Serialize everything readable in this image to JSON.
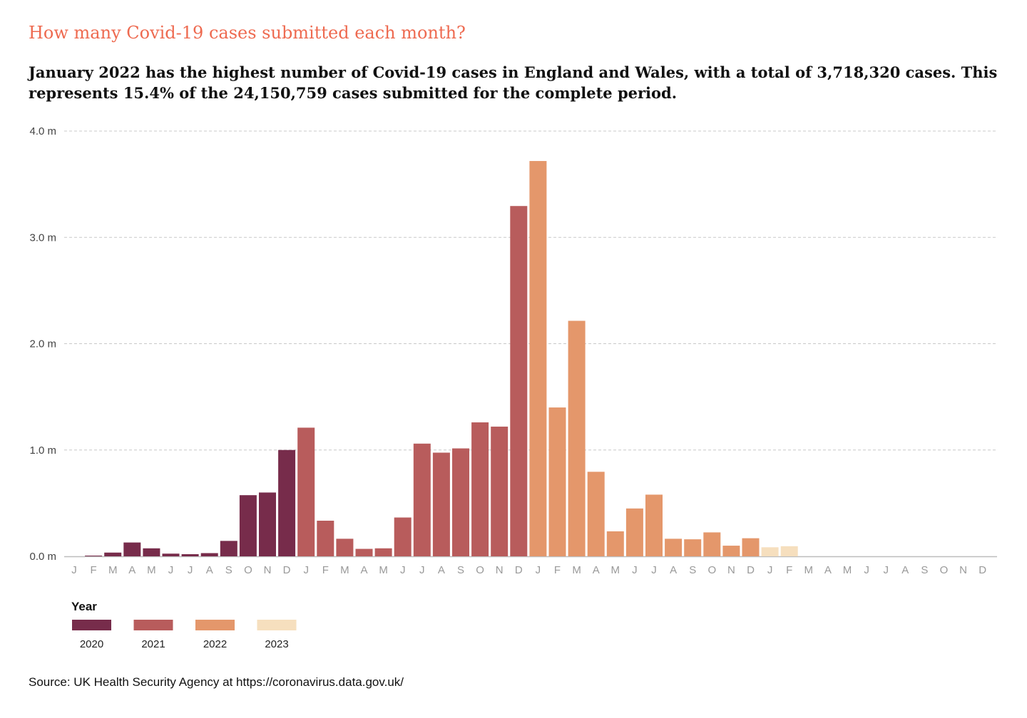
{
  "kicker": "How many Covid-19 cases submitted each month?",
  "headline": "January 2022 has the highest number of Covid-19 cases in England and Wales, with a total of 3,718,320 cases. This represents 15.4% of the 24,150,759 cases submitted for the complete period.",
  "source": "Source: UK Health Security Agency at https://coronavirus.data.gov.uk/",
  "colors": {
    "2020": "#772C4B",
    "2021": "#B85C5C",
    "2022": "#E4976B",
    "2023": "#F6DFBE",
    "grid": "#c8c8c8",
    "axis_text": "#444444",
    "month_text": "#999999",
    "kicker": "#EE6A50"
  },
  "chart_data": {
    "type": "bar",
    "y_unit": "cases",
    "ylim": [
      0,
      4000000
    ],
    "yticks": [
      0,
      1000000,
      2000000,
      3000000,
      4000000
    ],
    "ytick_labels": [
      "0.0 m",
      "1.0 m",
      "2.0 m",
      "3.0 m",
      "4.0 m"
    ],
    "grid": true,
    "month_labels": [
      "J",
      "F",
      "M",
      "A",
      "M",
      "J",
      "J",
      "A",
      "S",
      "O",
      "N",
      "D"
    ],
    "legend": {
      "title": "Year",
      "position": "bottom-left",
      "items": [
        "2020",
        "2021",
        "2022",
        "2023"
      ]
    },
    "series": [
      {
        "name": "2020",
        "values": [
          0,
          2000,
          35000,
          130000,
          75000,
          25000,
          20000,
          30000,
          145000,
          575000,
          600000,
          1000000
        ]
      },
      {
        "name": "2021",
        "values": [
          1210000,
          335000,
          165000,
          70000,
          75000,
          365000,
          1060000,
          975000,
          1015000,
          1260000,
          1220000,
          3295000
        ]
      },
      {
        "name": "2022",
        "values": [
          3718320,
          1400000,
          2215000,
          795000,
          235000,
          450000,
          580000,
          165000,
          160000,
          225000,
          100000,
          170000
        ]
      },
      {
        "name": "2023",
        "values": [
          85000,
          95000,
          0,
          0,
          0,
          0,
          0,
          0,
          0,
          0,
          0,
          0
        ]
      }
    ]
  }
}
